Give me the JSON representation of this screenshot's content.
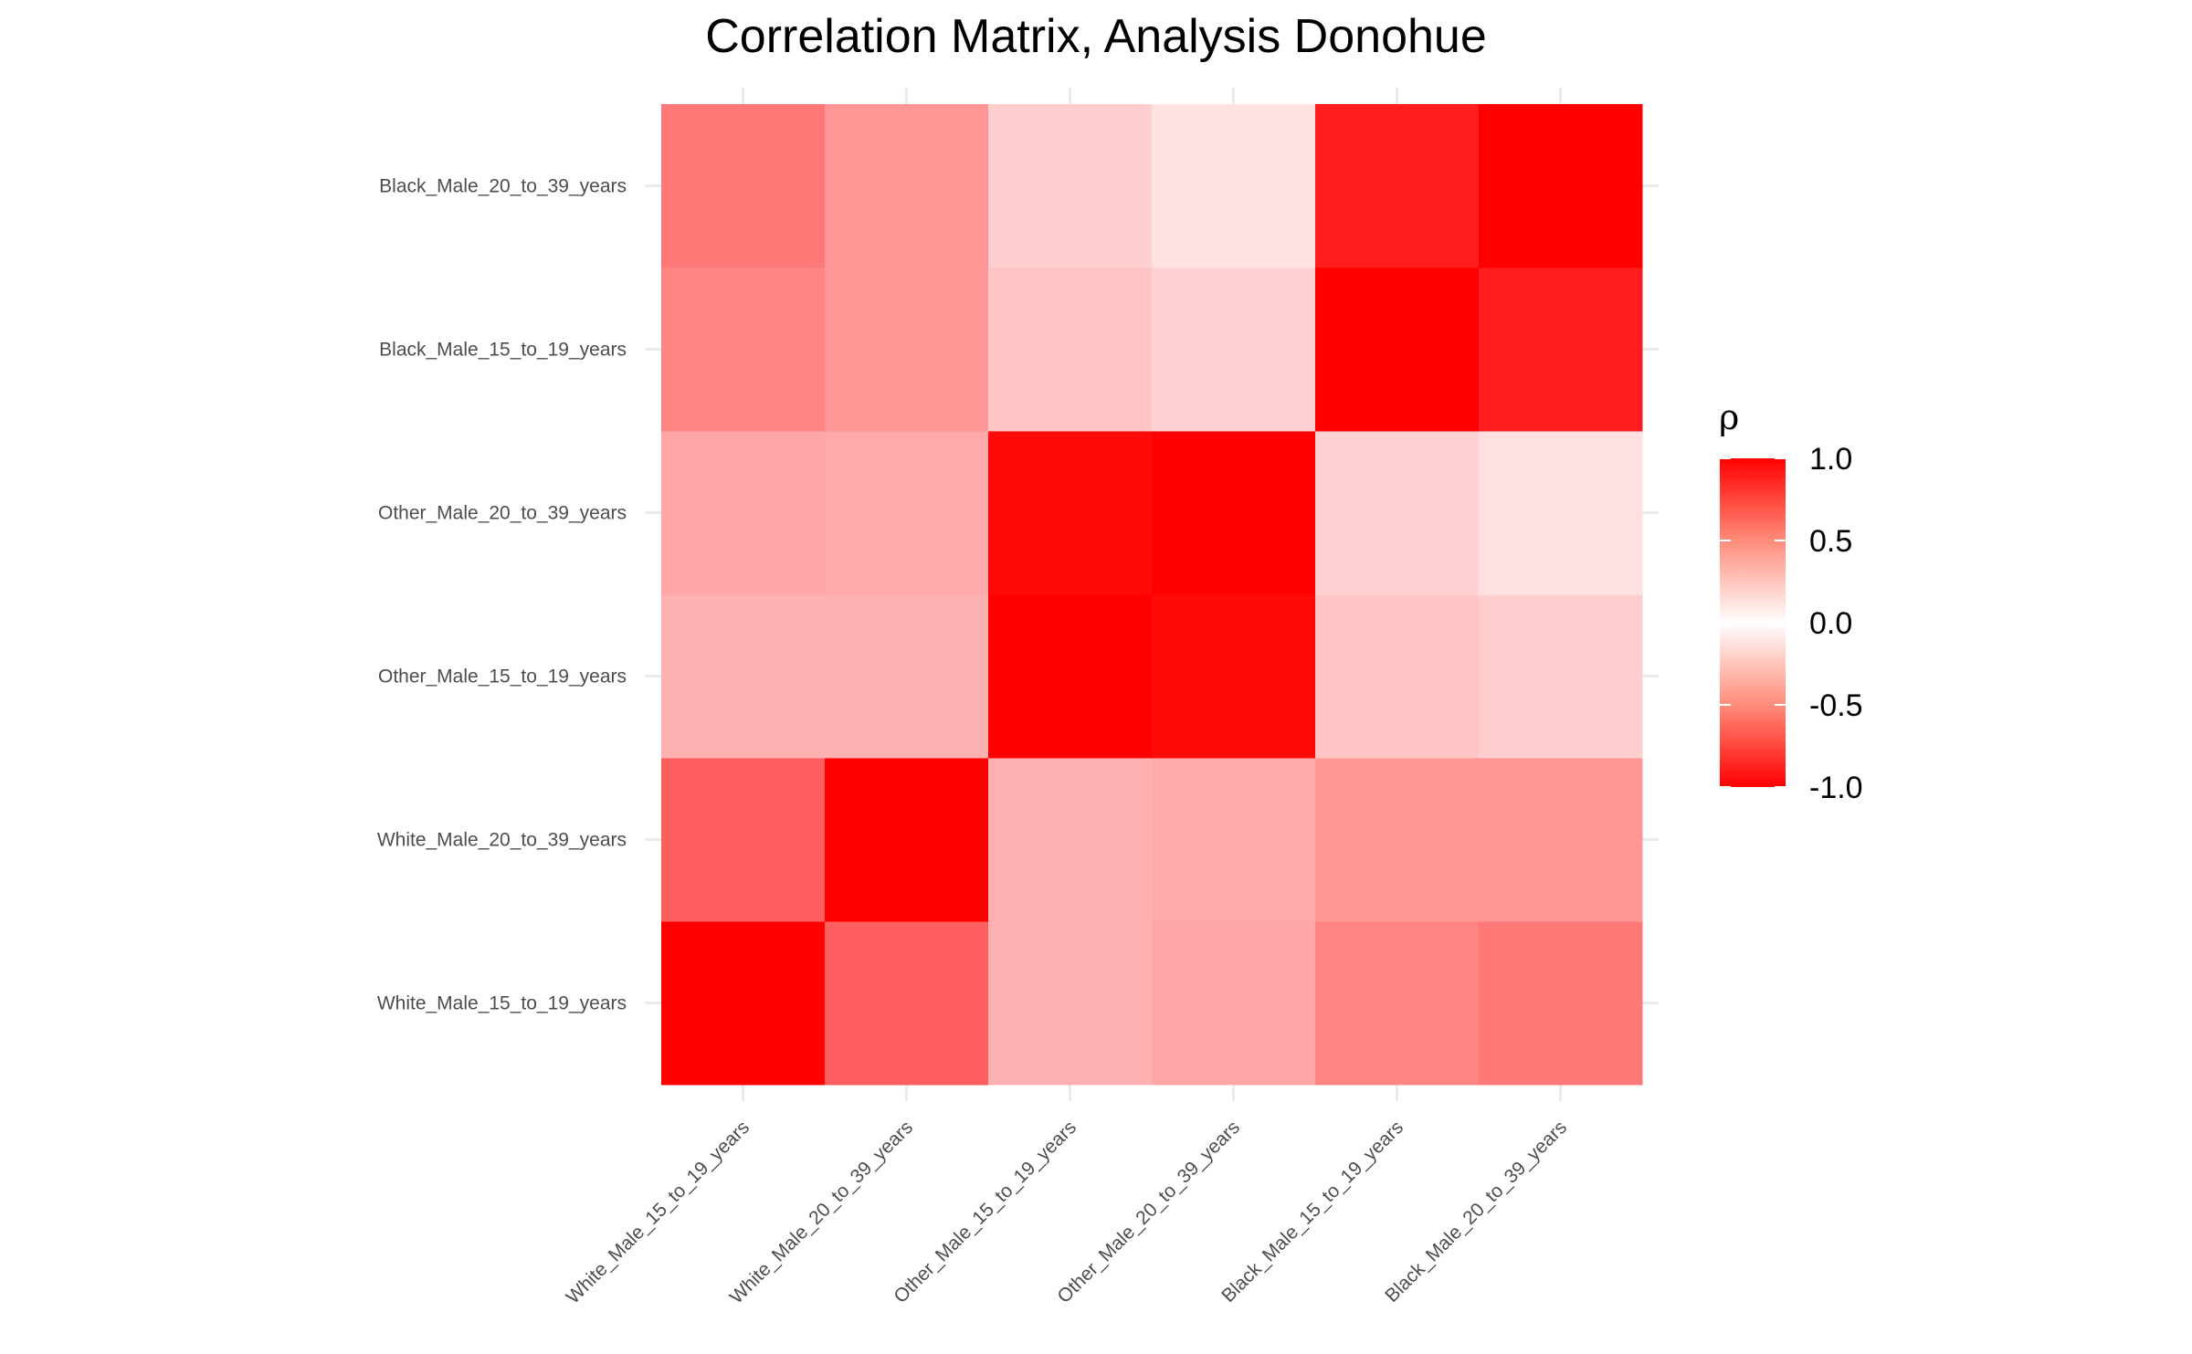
{
  "chart_data": {
    "type": "heatmap",
    "title": "Correlation Matrix, Analysis Donohue",
    "x_categories": [
      "White_Male_15_to_19_years",
      "White_Male_20_to_39_years",
      "Other_Male_15_to_19_years",
      "Other_Male_20_to_39_years",
      "Black_Male_15_to_19_years",
      "Black_Male_20_to_39_years"
    ],
    "y_categories": [
      "White_Male_15_to_19_years",
      "White_Male_20_to_39_years",
      "Other_Male_15_to_19_years",
      "Other_Male_20_to_39_years",
      "Black_Male_15_to_19_years",
      "Black_Male_20_to_39_years"
    ],
    "matrix": [
      [
        1.0,
        0.75,
        0.4,
        0.45,
        0.6,
        0.65
      ],
      [
        0.75,
        1.0,
        0.4,
        0.43,
        0.52,
        0.52
      ],
      [
        0.4,
        0.4,
        1.0,
        0.99,
        0.3,
        0.25
      ],
      [
        0.45,
        0.43,
        0.99,
        1.0,
        0.24,
        0.16
      ],
      [
        0.6,
        0.52,
        0.3,
        0.24,
        1.0,
        0.95
      ],
      [
        0.65,
        0.52,
        0.25,
        0.16,
        0.95,
        1.0
      ]
    ],
    "color_scale": {
      "high": "#ff0000",
      "mid": "#ffffff",
      "low": "#ff0000"
    },
    "legend": {
      "title": "ρ",
      "position": "right",
      "ticks": [
        "1.0",
        "0.5",
        "0.0",
        "-0.5",
        "-1.0"
      ],
      "tick_values": [
        1.0,
        0.5,
        0.0,
        -0.5,
        -1.0
      ],
      "range": [
        -1,
        1
      ]
    },
    "grid": true
  }
}
